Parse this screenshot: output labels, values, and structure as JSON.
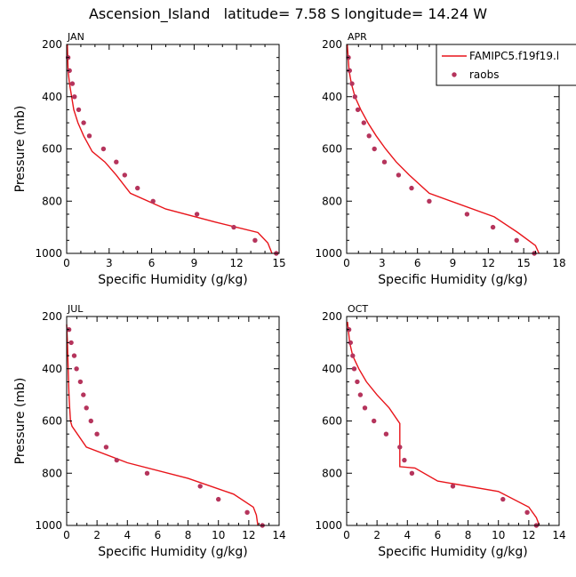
{
  "figure_title": "Ascension_Island   latitude= 7.58 S longitude= 14.24 W",
  "colors": {
    "model": "#e8141a",
    "obs": "#b5345c",
    "axis": "#000000"
  },
  "legend": {
    "entries": [
      {
        "label": "FAMIPC5.f19f19.l",
        "style": "line"
      },
      {
        "label": "raobs",
        "style": "marker"
      }
    ]
  },
  "chart_data": [
    {
      "type": "line",
      "title": "JAN",
      "xlabel": "Specific Humidity (g/kg)",
      "ylabel": "Pressure (mb)",
      "xlim": [
        0,
        15
      ],
      "ylim": [
        1000,
        200
      ],
      "xticks": [
        "0",
        "3",
        "6",
        "9",
        "12",
        "15"
      ],
      "yticks": [
        "200",
        "400",
        "600",
        "800",
        "1000"
      ],
      "series": [
        {
          "name": "FAMIPC5.f19f19.l",
          "x": [
            0.05,
            0.1,
            0.2,
            0.35,
            0.5,
            0.8,
            1.2,
            1.8,
            2.7,
            3.5,
            4.5,
            7.0,
            10.5,
            13.5,
            14.2,
            14.5
          ],
          "y": [
            200,
            300,
            350,
            400,
            450,
            500,
            550,
            610,
            650,
            700,
            770,
            830,
            880,
            920,
            960,
            1000
          ]
        },
        {
          "name": "raobs",
          "x": [
            0.1,
            0.2,
            0.4,
            0.55,
            0.85,
            1.2,
            1.6,
            2.6,
            3.5,
            4.1,
            5.0,
            6.1,
            9.2,
            11.8,
            13.3,
            14.8
          ],
          "y": [
            250,
            300,
            350,
            400,
            450,
            500,
            550,
            600,
            650,
            700,
            750,
            800,
            850,
            900,
            950,
            1000
          ]
        }
      ]
    },
    {
      "type": "line",
      "title": "APR",
      "xlabel": "Specific Humidity (g/kg)",
      "ylabel": "Pressure (mb)",
      "xlim": [
        0,
        18
      ],
      "ylim": [
        1000,
        200
      ],
      "xticks": [
        "0",
        "3",
        "6",
        "9",
        "12",
        "15",
        "18"
      ],
      "yticks": [
        "200",
        "400",
        "600",
        "800",
        "1000"
      ],
      "series": [
        {
          "name": "FAMIPC5.f19f19.l",
          "x": [
            0.05,
            0.2,
            0.4,
            0.7,
            1.2,
            1.8,
            2.5,
            3.3,
            4.2,
            5.3,
            7.0,
            12.5,
            14.5,
            16.0,
            16.3
          ],
          "y": [
            200,
            300,
            350,
            400,
            450,
            500,
            550,
            600,
            650,
            700,
            770,
            860,
            920,
            970,
            1000
          ]
        },
        {
          "name": "raobs",
          "x": [
            0.15,
            0.25,
            0.45,
            0.7,
            0.95,
            1.45,
            1.9,
            2.35,
            3.2,
            4.4,
            5.5,
            7.0,
            10.2,
            12.4,
            14.4,
            15.9
          ],
          "y": [
            250,
            300,
            350,
            400,
            450,
            500,
            550,
            600,
            650,
            700,
            750,
            800,
            850,
            900,
            950,
            1000
          ]
        }
      ]
    },
    {
      "type": "line",
      "title": "JUL",
      "xlabel": "Specific Humidity (g/kg)",
      "ylabel": "Pressure (mb)",
      "xlim": [
        0,
        14
      ],
      "ylim": [
        1000,
        200
      ],
      "xticks": [
        "0",
        "2",
        "4",
        "6",
        "8",
        "10",
        "12",
        "14"
      ],
      "yticks": [
        "200",
        "400",
        "600",
        "800",
        "1000"
      ],
      "series": [
        {
          "name": "FAMIPC5.f19f19.l",
          "x": [
            0.0,
            0.05,
            0.1,
            0.15,
            0.2,
            0.25,
            0.35,
            1.3,
            4.0,
            8.0,
            11.0,
            12.3,
            12.5,
            12.6
          ],
          "y": [
            230,
            300,
            400,
            500,
            550,
            600,
            620,
            700,
            760,
            820,
            880,
            930,
            960,
            1000
          ]
        },
        {
          "name": "raobs",
          "x": [
            0.15,
            0.3,
            0.5,
            0.65,
            0.9,
            1.1,
            1.3,
            1.6,
            2.0,
            2.6,
            3.3,
            5.3,
            8.8,
            10.0,
            11.9,
            12.9
          ],
          "y": [
            250,
            300,
            350,
            400,
            450,
            500,
            550,
            600,
            650,
            700,
            750,
            800,
            850,
            900,
            950,
            1000
          ]
        }
      ]
    },
    {
      "type": "line",
      "title": "OCT",
      "xlabel": "Specific Humidity (g/kg)",
      "ylabel": "Pressure (mb)",
      "xlim": [
        0,
        14
      ],
      "ylim": [
        1000,
        200
      ],
      "xticks": [
        "0",
        "2",
        "4",
        "6",
        "8",
        "10",
        "12",
        "14"
      ],
      "yticks": [
        "200",
        "400",
        "600",
        "800",
        "1000"
      ],
      "series": [
        {
          "name": "FAMIPC5.f19f19.l",
          "x": [
            0.05,
            0.2,
            0.4,
            0.8,
            1.3,
            2.0,
            2.8,
            3.5,
            3.5,
            4.5,
            6.0,
            10.0,
            12.0,
            12.5,
            12.7
          ],
          "y": [
            220,
            300,
            350,
            400,
            450,
            500,
            550,
            610,
            775,
            780,
            830,
            870,
            930,
            970,
            1000
          ]
        },
        {
          "name": "raobs",
          "x": [
            0.15,
            0.25,
            0.4,
            0.5,
            0.7,
            0.9,
            1.2,
            1.8,
            2.6,
            3.5,
            3.8,
            4.3,
            7.0,
            10.3,
            11.9,
            12.5
          ],
          "y": [
            250,
            300,
            350,
            400,
            450,
            500,
            550,
            600,
            650,
            700,
            750,
            800,
            850,
            900,
            950,
            1000
          ]
        }
      ]
    }
  ]
}
